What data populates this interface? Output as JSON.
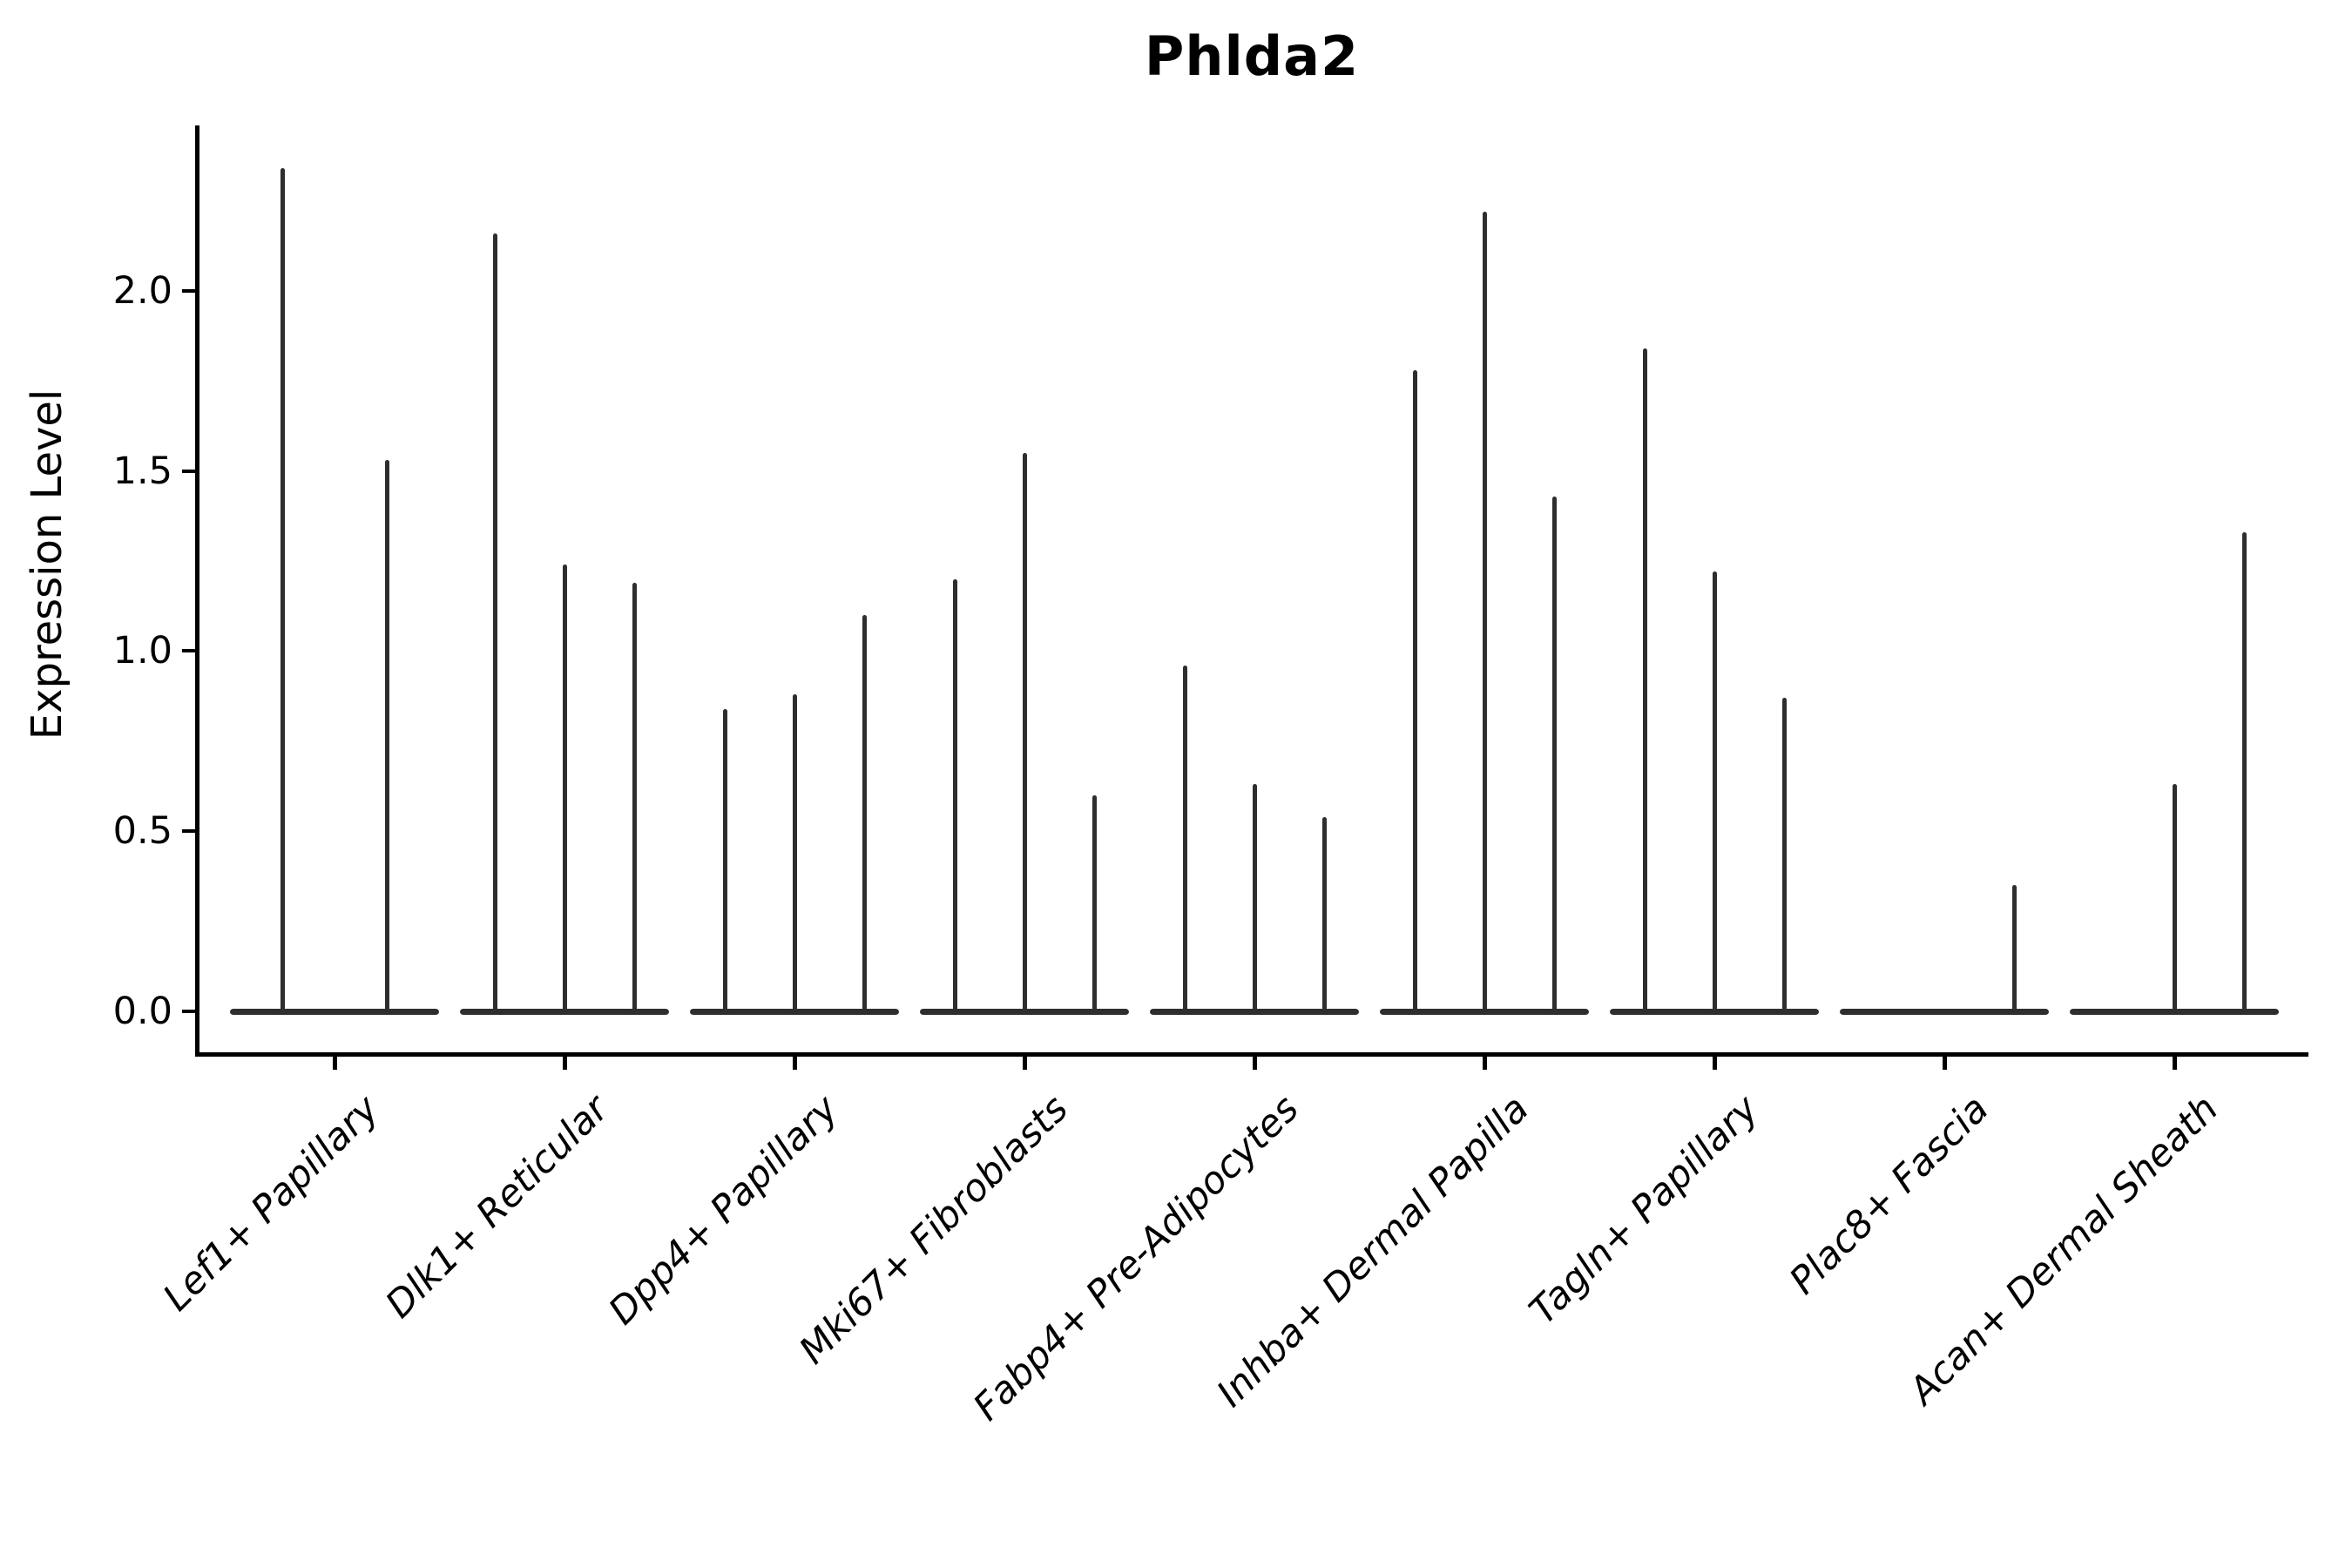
{
  "chart_data": {
    "type": "violin",
    "title": "Phlda2",
    "ylabel": "Expression Level",
    "xlabel": "",
    "yticks": [
      0.0,
      0.5,
      1.0,
      1.5,
      2.0
    ],
    "ylim": [
      -0.11,
      2.45
    ],
    "grid": false,
    "legend_position": "none",
    "style_notes": "Seurat-style stacked violin plot; violins are extremely thin spikes with wide flat bases at zero; x tick labels rotated 45 degrees, italic",
    "categories": [
      "Lef1+ Papillary",
      "Dlk1+ Reticular",
      "Dpp4+ Papillary",
      "Mki67+ Fibroblasts",
      "Fabp4+ Pre-Adipocytes",
      "Inhba+ Dermal Papilla",
      "Tagln+ Papillary",
      "Plac8+ Fascia",
      "Acan+ Dermal Sheath"
    ],
    "groups": [
      {
        "category": "Lef1+ Papillary",
        "violin_max_expression": [
          2.34,
          1.53
        ]
      },
      {
        "category": "Dlk1+ Reticular",
        "violin_max_expression": [
          2.16,
          1.24,
          1.19
        ]
      },
      {
        "category": "Dpp4+ Papillary",
        "violin_max_expression": [
          0.84,
          0.88,
          1.1
        ]
      },
      {
        "category": "Mki67+ Fibroblasts",
        "violin_max_expression": [
          1.2,
          1.55,
          0.6
        ]
      },
      {
        "category": "Fabp4+ Pre-Adipocytes",
        "violin_max_expression": [
          0.96,
          0.63,
          0.54
        ]
      },
      {
        "category": "Inhba+ Dermal Papilla",
        "violin_max_expression": [
          1.78,
          2.22,
          1.43
        ]
      },
      {
        "category": "Tagln+ Papillary",
        "violin_max_expression": [
          1.84,
          1.22,
          0.87
        ]
      },
      {
        "category": "Plac8+ Fascia",
        "violin_max_expression": [
          0.0,
          0.0,
          0.35
        ]
      },
      {
        "category": "Acan+ Dermal Sheath",
        "violin_max_expression": [
          0.0,
          0.63,
          1.33
        ]
      }
    ],
    "colors": {
      "violin": "#2e2e2e",
      "axis": "#000000",
      "text": "#000000",
      "background": "#ffffff"
    }
  }
}
